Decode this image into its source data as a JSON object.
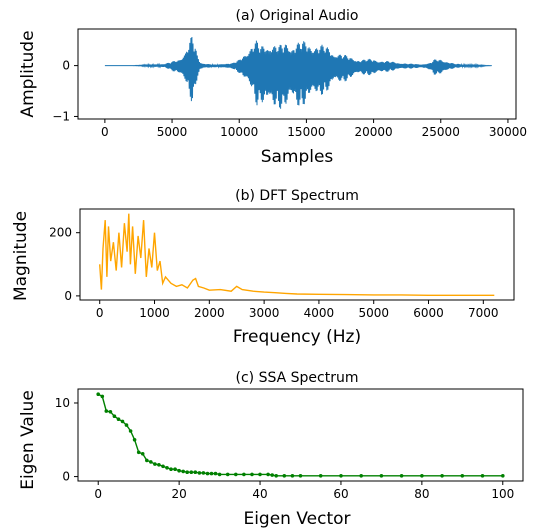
{
  "chart_data": [
    {
      "type": "line",
      "title": "(a) Original Audio",
      "xlabel": "Samples",
      "ylabel": "Amplitude",
      "xlim": [
        -2000,
        30600
      ],
      "ylim": [
        -1.05,
        0.72
      ],
      "xticks": [
        0,
        5000,
        10000,
        15000,
        20000,
        25000,
        30000
      ],
      "xtick_labels": [
        "0",
        "5000",
        "10000",
        "15000",
        "20000",
        "25000",
        "30000"
      ],
      "yticks": [
        -1,
        0
      ],
      "ytick_labels": [
        "−1",
        "0"
      ],
      "color": "#1f77b4",
      "series": [
        {
          "x": [
            0,
            2000,
            4500,
            5000,
            5500,
            6000,
            6300,
            6500,
            6700,
            6900,
            7100,
            7400,
            7800,
            8200,
            8600,
            9000,
            9500,
            10000,
            10500,
            11000,
            11300,
            11600,
            11900,
            12200,
            12500,
            13000,
            13500,
            14000,
            14500,
            15000,
            15500,
            16000,
            16500,
            17000,
            18000,
            19000,
            20000,
            20500,
            21500,
            22500,
            23500,
            24200,
            24500,
            25000,
            25500,
            26000,
            27000,
            28000,
            28800
          ],
          "envelope_upper": [
            0.0,
            0.0,
            0.04,
            0.08,
            0.14,
            0.3,
            0.5,
            0.6,
            0.45,
            0.2,
            0.08,
            0.05,
            0.03,
            0.02,
            0.03,
            0.05,
            0.05,
            0.12,
            0.3,
            0.45,
            0.5,
            0.4,
            0.45,
            0.5,
            0.45,
            0.4,
            0.5,
            0.45,
            0.48,
            0.5,
            0.45,
            0.42,
            0.4,
            0.3,
            0.2,
            0.12,
            0.14,
            0.1,
            0.08,
            0.04,
            0.03,
            0.05,
            0.12,
            0.15,
            0.08,
            0.04,
            0.02,
            0.01,
            0.0
          ],
          "envelope_lower": [
            0.0,
            0.0,
            -0.04,
            -0.1,
            -0.18,
            -0.35,
            -0.6,
            -0.75,
            -0.5,
            -0.25,
            -0.1,
            -0.06,
            -0.04,
            -0.03,
            -0.04,
            -0.06,
            -0.06,
            -0.15,
            -0.35,
            -0.55,
            -0.8,
            -0.75,
            -0.85,
            -0.95,
            -0.9,
            -0.85,
            -0.9,
            -0.8,
            -0.85,
            -0.75,
            -0.7,
            -0.6,
            -0.55,
            -0.4,
            -0.3,
            -0.18,
            -0.2,
            -0.15,
            -0.1,
            -0.06,
            -0.05,
            -0.08,
            -0.18,
            -0.2,
            -0.1,
            -0.05,
            -0.03,
            -0.02,
            0.0
          ]
        }
      ]
    },
    {
      "type": "line",
      "title": "(b) DFT Spectrum",
      "xlabel": "Frequency (Hz)",
      "ylabel": "Magnitude",
      "xlim": [
        -360,
        7560
      ],
      "ylim": [
        -13,
        275
      ],
      "xticks": [
        0,
        1000,
        2000,
        3000,
        4000,
        5000,
        6000,
        7000
      ],
      "xtick_labels": [
        "0",
        "1000",
        "2000",
        "3000",
        "4000",
        "5000",
        "6000",
        "7000"
      ],
      "yticks": [
        0,
        200
      ],
      "ytick_labels": [
        "0",
        "200"
      ],
      "color": "#ffa500",
      "series": [
        {
          "x": [
            0,
            30,
            60,
            100,
            130,
            160,
            200,
            250,
            300,
            350,
            400,
            450,
            500,
            530,
            560,
            600,
            650,
            700,
            750,
            800,
            850,
            900,
            950,
            1000,
            1050,
            1100,
            1150,
            1200,
            1300,
            1400,
            1500,
            1600,
            1700,
            1750,
            1800,
            1900,
            2000,
            2200,
            2400,
            2500,
            2600,
            2800,
            3000,
            3200,
            3400,
            3600,
            4000,
            4500,
            5000,
            5500,
            6000,
            6500,
            7000,
            7200
          ],
          "y": [
            100,
            20,
            150,
            240,
            60,
            220,
            110,
            170,
            80,
            200,
            90,
            230,
            140,
            260,
            100,
            220,
            70,
            190,
            120,
            240,
            60,
            150,
            90,
            200,
            80,
            110,
            40,
            60,
            40,
            30,
            35,
            25,
            50,
            55,
            30,
            25,
            18,
            20,
            15,
            30,
            20,
            15,
            12,
            10,
            8,
            6,
            5,
            4,
            3,
            3,
            2,
            2,
            2,
            2
          ]
        }
      ]
    },
    {
      "type": "line",
      "title": "(c) SSA Spectrum",
      "xlabel": "Eigen Vector",
      "ylabel": "Eigen Value",
      "xlim": [
        -5,
        105
      ],
      "ylim": [
        -0.6,
        11.9
      ],
      "xticks": [
        0,
        20,
        40,
        60,
        80,
        100
      ],
      "xtick_labels": [
        "0",
        "20",
        "40",
        "60",
        "80",
        "100"
      ],
      "yticks": [
        0,
        10
      ],
      "ytick_labels": [
        "0",
        "10"
      ],
      "color": "#008000",
      "marker": "dot",
      "series": [
        {
          "x": [
            0,
            1,
            2,
            3,
            4,
            5,
            6,
            7,
            8,
            9,
            10,
            11,
            12,
            13,
            14,
            15,
            16,
            17,
            18,
            19,
            20,
            21,
            22,
            23,
            24,
            25,
            26,
            27,
            28,
            29,
            30,
            32,
            34,
            36,
            38,
            40,
            42,
            43,
            44,
            46,
            48,
            50,
            55,
            60,
            65,
            70,
            75,
            80,
            85,
            90,
            95,
            100
          ],
          "y": [
            11.2,
            10.9,
            8.9,
            8.8,
            8.2,
            7.8,
            7.5,
            7.0,
            6.2,
            5.0,
            3.3,
            3.1,
            2.2,
            2.0,
            1.7,
            1.6,
            1.4,
            1.2,
            1.0,
            1.0,
            0.8,
            0.7,
            0.6,
            0.6,
            0.6,
            0.5,
            0.5,
            0.4,
            0.4,
            0.4,
            0.3,
            0.3,
            0.3,
            0.3,
            0.3,
            0.3,
            0.3,
            0.2,
            0.1,
            0.1,
            0.1,
            0.1,
            0.1,
            0.1,
            0.1,
            0.1,
            0.1,
            0.1,
            0.1,
            0.1,
            0.1,
            0.1
          ]
        }
      ]
    }
  ]
}
